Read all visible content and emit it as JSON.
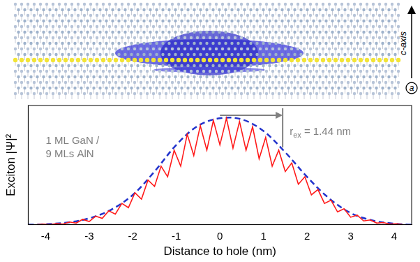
{
  "structure": {
    "axis_label": "c-axis",
    "direction_label": "a"
  },
  "chart_data": {
    "type": "line",
    "x_label": "Distance to hole (nm)",
    "y_label": "Exciton |Ψ|²",
    "xlim": [
      -4.4,
      4.4
    ],
    "xticks": [
      -4,
      -3,
      -2,
      -1,
      0,
      1,
      2,
      3,
      4
    ],
    "ylim": [
      0,
      1.12
    ],
    "tick_labels": "x",
    "grid": false,
    "series": [
      {
        "color": "#ff1a1a",
        "line_style": "solid",
        "x": [
          -4.2,
          -4.05,
          -3.9,
          -3.75,
          -3.6,
          -3.45,
          -3.3,
          -3.15,
          -3.0,
          -2.85,
          -2.7,
          -2.55,
          -2.4,
          -2.25,
          -2.1,
          -1.95,
          -1.8,
          -1.65,
          -1.5,
          -1.35,
          -1.2,
          -1.05,
          -0.9,
          -0.75,
          -0.6,
          -0.45,
          -0.3,
          -0.15,
          0,
          0.15,
          0.3,
          0.45,
          0.6,
          0.75,
          0.9,
          1.05,
          1.2,
          1.35,
          1.5,
          1.65,
          1.8,
          1.95,
          2.1,
          2.25,
          2.4,
          2.55,
          2.7,
          2.85,
          3.0,
          3.15,
          3.3,
          3.45,
          3.6,
          3.75,
          3.9,
          4.05,
          4.2
        ],
        "values": [
          0.0,
          0.005,
          0.0,
          0.01,
          0.005,
          0.025,
          0.015,
          0.05,
          0.03,
          0.08,
          0.06,
          0.13,
          0.1,
          0.2,
          0.16,
          0.3,
          0.24,
          0.42,
          0.36,
          0.55,
          0.45,
          0.7,
          0.55,
          0.85,
          0.65,
          0.93,
          0.7,
          0.98,
          0.75,
          1.0,
          0.72,
          0.97,
          0.7,
          0.92,
          0.62,
          0.82,
          0.55,
          0.7,
          0.5,
          0.58,
          0.38,
          0.45,
          0.28,
          0.33,
          0.2,
          0.23,
          0.12,
          0.15,
          0.07,
          0.09,
          0.035,
          0.045,
          0.015,
          0.02,
          0.005,
          0.008,
          0.0
        ]
      },
      {
        "color": "#2233cc",
        "line_style": "dashed",
        "x": [
          -4.4,
          -4.0,
          -3.5,
          -3.0,
          -2.5,
          -2.0,
          -1.5,
          -1.0,
          -0.5,
          0,
          0.5,
          1.0,
          1.5,
          2.0,
          2.5,
          3.0,
          3.5,
          4.0,
          4.4
        ],
        "values": [
          0.0,
          0.005,
          0.02,
          0.06,
          0.14,
          0.28,
          0.5,
          0.75,
          0.93,
          1.0,
          0.99,
          0.88,
          0.68,
          0.45,
          0.25,
          0.11,
          0.04,
          0.01,
          0.0
        ]
      }
    ],
    "annotations": [
      {
        "lines": [
          "1 ML GaN /",
          "9 MLs AlN"
        ],
        "color": "#808080"
      },
      {
        "text": "r",
        "subscript": "ex",
        "suffix": " = 1.44 nm",
        "x_start": 0,
        "x_end": 1.44,
        "color": "#808080"
      }
    ]
  }
}
